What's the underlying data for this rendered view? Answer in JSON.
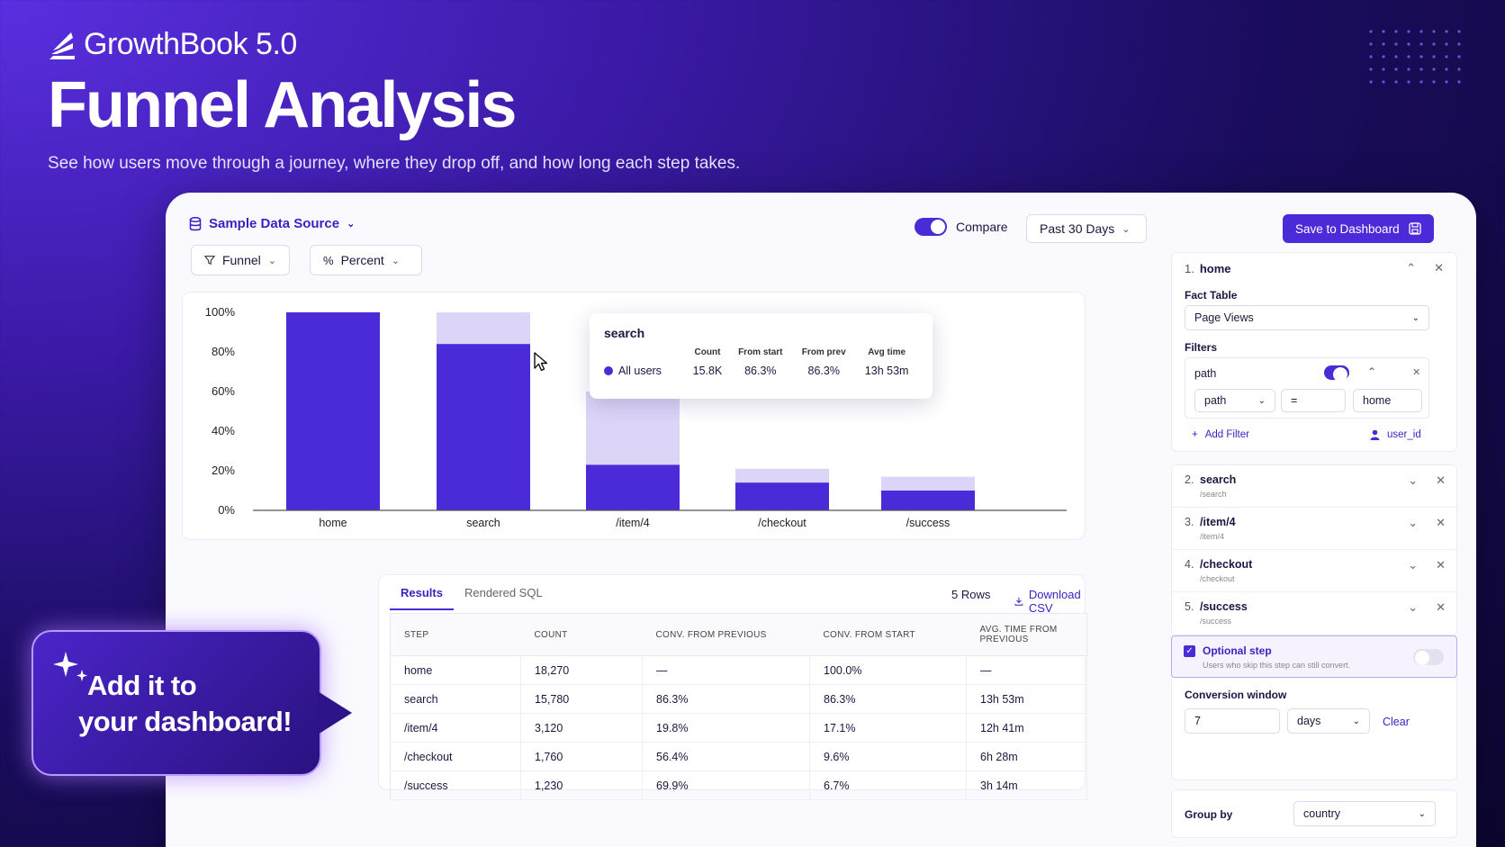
{
  "hero": {
    "brand": "GrowthBook 5.0",
    "title": "Funnel Analysis",
    "subtitle": "See how users move through a journey, where they drop off, and how long each step takes."
  },
  "toolbar": {
    "data_source": "Sample Data Source",
    "funnel_label": "Funnel",
    "percent_label": "Percent",
    "compare_label": "Compare",
    "compare_on": true,
    "date_range": "Past 30 Days",
    "save_label": "Save to Dashboard"
  },
  "chart_data": {
    "type": "bar",
    "categories": [
      "home",
      "search",
      "/item/4",
      "/checkout",
      "/success"
    ],
    "series": [
      {
        "values": [
          100,
          84,
          23,
          14,
          10
        ]
      },
      {
        "values": [
          100,
          100,
          60,
          21,
          17
        ]
      }
    ],
    "ylim": [
      0,
      100
    ],
    "yticks": [
      "0%",
      "20%",
      "40%",
      "60%",
      "80%",
      "100%"
    ],
    "colors": {
      "primary": "#4b2bd8",
      "light": "#dcd5f7"
    }
  },
  "tooltip": {
    "title": "search",
    "headers": [
      "Count",
      "From start",
      "From prev",
      "Avg time"
    ],
    "row": {
      "label": "All users",
      "count": "15.8K",
      "from_start": "86.3%",
      "from_prev": "86.3%",
      "avg_time": "13h 53m"
    }
  },
  "results": {
    "tabs": [
      "Results",
      "Rendered SQL"
    ],
    "rows_count": "5 Rows",
    "download": "Download CSV",
    "headers": [
      "STEP",
      "COUNT",
      "CONV. FROM PREVIOUS",
      "CONV. FROM START",
      "AVG. TIME FROM PREVIOUS"
    ],
    "rows": [
      [
        "home",
        "18,270",
        "—",
        "100.0%",
        "—"
      ],
      [
        "search",
        "15,780",
        "86.3%",
        "86.3%",
        "13h 53m"
      ],
      [
        "/item/4",
        "3,120",
        "19.8%",
        "17.1%",
        "12h 41m"
      ],
      [
        "/checkout",
        "1,760",
        "56.4%",
        "9.6%",
        "6h 28m"
      ],
      [
        "/success",
        "1,230",
        "69.9%",
        "6.7%",
        "3h 14m"
      ]
    ]
  },
  "side": {
    "step1": {
      "num": "1.",
      "name": "home",
      "fact_table_label": "Fact Table",
      "fact_table_value": "Page Views",
      "filters_label": "Filters",
      "filter_name": "path",
      "filter_field": "path",
      "filter_op": "=",
      "filter_value": "home",
      "add_filter": "Add Filter",
      "user_id": "user_id"
    },
    "steps": [
      {
        "num": "2.",
        "name": "search",
        "path": "/search"
      },
      {
        "num": "3.",
        "name": "/item/4",
        "path": "/item/4"
      },
      {
        "num": "4.",
        "name": "/checkout",
        "path": "/checkout"
      },
      {
        "num": "5.",
        "name": "/success",
        "path": "/success"
      }
    ],
    "optional_label": "Optional step",
    "optional_desc": "Users who skip this step can still convert.",
    "conv_window_label": "Conversion window",
    "conv_window_value": "7",
    "conv_window_unit": "days",
    "clear_label": "Clear",
    "group_by_label": "Group by",
    "group_by_value": "country"
  },
  "callout": {
    "line1": "Add it to",
    "line2": "your dashboard!"
  }
}
